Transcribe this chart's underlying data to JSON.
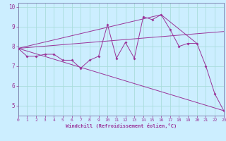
{
  "xlabel": "Windchill (Refroidissement éolien,°C)",
  "background_color": "#cceeff",
  "grid_color": "#aadddd",
  "line_color": "#993399",
  "spine_color": "#7777aa",
  "xmin": 0,
  "xmax": 23,
  "ymin": 4.5,
  "ymax": 10.2,
  "yticks": [
    5,
    6,
    7,
    8,
    9,
    10
  ],
  "xticks": [
    0,
    1,
    2,
    3,
    4,
    5,
    6,
    7,
    8,
    9,
    10,
    11,
    12,
    13,
    14,
    15,
    16,
    17,
    18,
    19,
    20,
    21,
    22,
    23
  ],
  "series": [
    [
      0,
      7.9
    ],
    [
      1,
      7.5
    ],
    [
      2,
      7.5
    ],
    [
      3,
      7.6
    ],
    [
      4,
      7.6
    ],
    [
      5,
      7.3
    ],
    [
      6,
      7.3
    ],
    [
      7,
      6.9
    ],
    [
      8,
      7.3
    ],
    [
      9,
      7.5
    ],
    [
      10,
      9.1
    ],
    [
      11,
      7.4
    ],
    [
      12,
      8.2
    ],
    [
      13,
      7.4
    ],
    [
      14,
      9.5
    ],
    [
      15,
      9.35
    ],
    [
      16,
      9.6
    ],
    [
      17,
      8.85
    ],
    [
      18,
      8.0
    ],
    [
      19,
      8.15
    ],
    [
      20,
      8.15
    ],
    [
      21,
      7.0
    ],
    [
      22,
      5.6
    ],
    [
      23,
      4.75
    ]
  ],
  "line_straight1": [
    [
      0,
      7.9
    ],
    [
      23,
      4.75
    ]
  ],
  "line_straight2": [
    [
      0,
      7.9
    ],
    [
      23,
      8.75
    ]
  ],
  "line_straight3": [
    [
      0,
      7.9
    ],
    [
      16,
      9.6
    ],
    [
      20,
      8.15
    ]
  ]
}
